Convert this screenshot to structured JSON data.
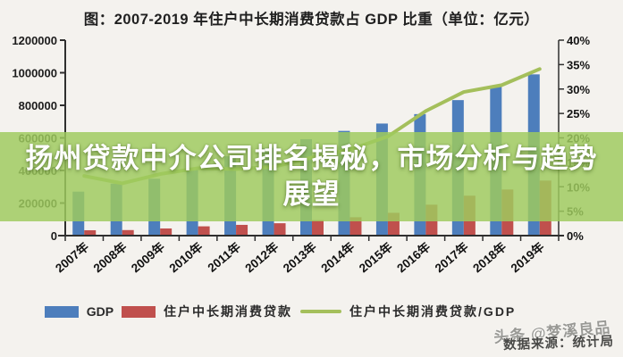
{
  "header": {
    "title": "图：2007-2019 年住户中长期消费贷款占 GDP 比重（单位：亿元）"
  },
  "chart_data": {
    "type": "bar",
    "title": "图：2007-2019 年住户中长期消费贷款占 GDP 比重（单位：亿元）",
    "unit": "亿元",
    "grid": false,
    "legend_position": "bottom",
    "categories": [
      "2007年",
      "2008年",
      "2009年",
      "2010年",
      "2011年",
      "2012年",
      "2013年",
      "2014年",
      "2015年",
      "2016年",
      "2017年",
      "2018年",
      "2019年"
    ],
    "series": [
      {
        "name": "GDP",
        "type": "bar",
        "axis": "left",
        "color": "#4d7ebc",
        "values": [
          270000,
          319000,
          349000,
          412000,
          487000,
          538000,
          592000,
          643000,
          688000,
          746000,
          832000,
          919000,
          990000
        ]
      },
      {
        "name": "住户中长期消费贷款",
        "type": "bar",
        "axis": "left",
        "color": "#c0504d",
        "values": [
          33000,
          34000,
          44000,
          57000,
          66000,
          76000,
          95000,
          113000,
          140000,
          190000,
          245000,
          283000,
          338000
        ]
      },
      {
        "name": "住户中长期消费贷款/GDP",
        "type": "line",
        "axis": "right",
        "color": "#a4bf5b",
        "values": [
          12.2,
          10.7,
          12.6,
          13.8,
          13.6,
          14.1,
          16.0,
          17.6,
          20.3,
          25.5,
          29.4,
          30.8,
          34.1
        ]
      }
    ],
    "left_axis": {
      "min": 0,
      "max": 1200000,
      "tick_step": 200000,
      "tick_labels": [
        "0",
        "200000",
        "400000",
        "600000",
        "800000",
        "1000000",
        "1200000"
      ]
    },
    "right_axis": {
      "min": 0,
      "max": 40,
      "tick_step": 5,
      "tick_labels": [
        "0%",
        "5%",
        "10%",
        "15%",
        "20%",
        "25%",
        "30%",
        "35%",
        "40%"
      ]
    }
  },
  "overlay_banner": {
    "lines": [
      "扬州贷款中介公司排名揭秘，市场分析与趋势",
      "展望"
    ],
    "background": "rgba(159,203,94,0.84)",
    "text_color": "#ffffff"
  },
  "footer": {
    "source": "数据来源：统计局",
    "watermark": "头条 @梦溪良品"
  },
  "colors": {
    "gdp_bar": "#4d7ebc",
    "loan_bar": "#c0504d",
    "ratio_line": "#a4bf5b",
    "axis": "#2f2f2f",
    "background": "#f4f2ee"
  }
}
